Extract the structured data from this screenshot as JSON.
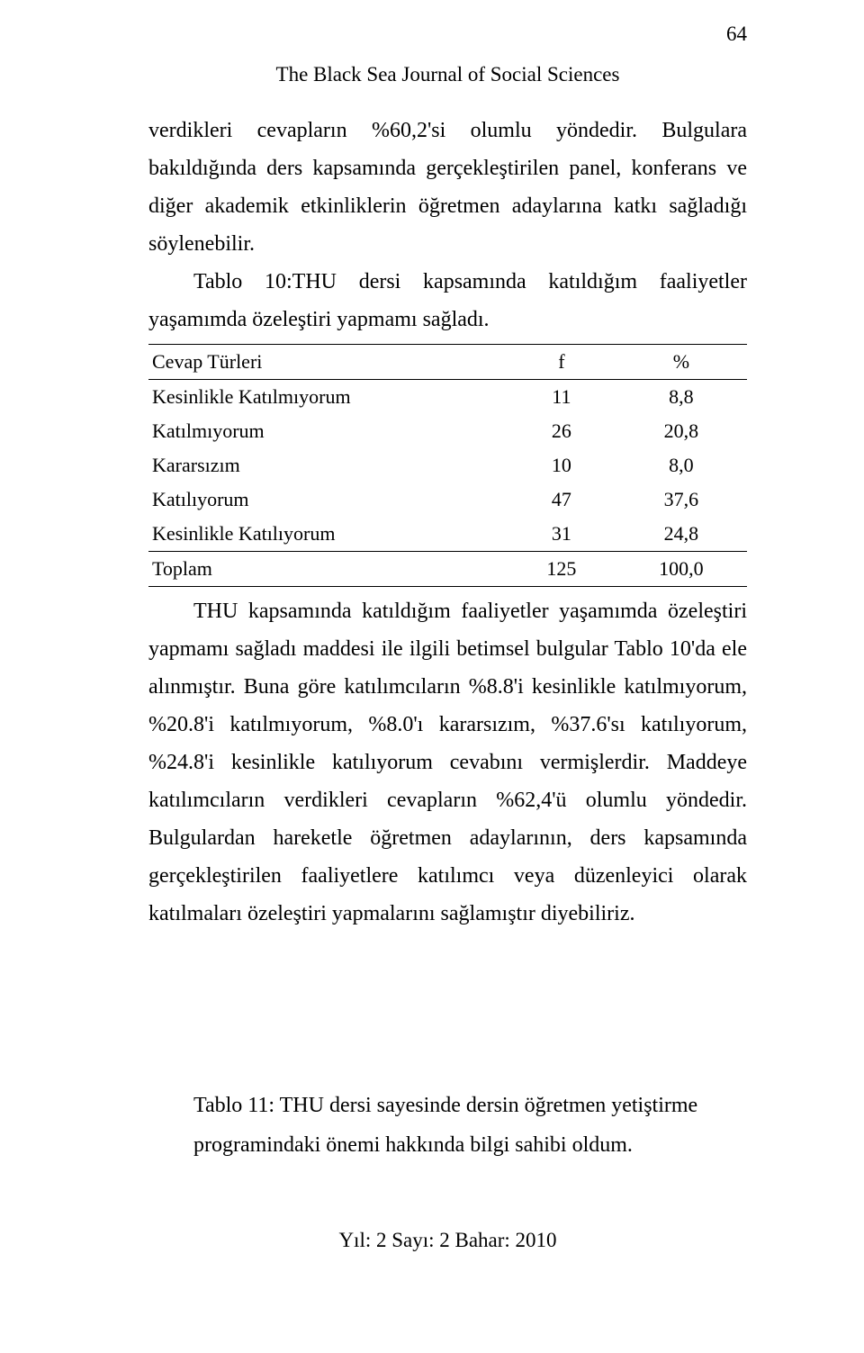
{
  "page_number": "64",
  "journal_title": "The Black Sea Journal of Social Sciences",
  "intro_paragraph": "verdikleri cevapların %60,2'si olumlu yöndedir. Bulgulara bakıldığında ders kapsamında gerçekleştirilen panel, konferans ve diğer akademik etkinliklerin öğretmen adaylarına katkı sağladığı söylenebilir.",
  "table_caption": "Tablo 10:THU dersi kapsamında katıldığım faaliyetler yaşamımda özeleştiri yapmamı sağladı.",
  "table": {
    "type": "table",
    "columns": [
      "Cevap Türleri",
      "f",
      "%"
    ],
    "rows": [
      [
        "Kesinlikle Katılmıyorum",
        "11",
        "8,8"
      ],
      [
        "Katılmıyorum",
        "26",
        "20,8"
      ],
      [
        "Kararsızım",
        "10",
        "8,0"
      ],
      [
        "Katılıyorum",
        "47",
        "37,6"
      ],
      [
        "Kesinlikle Katılıyorum",
        "31",
        "24,8"
      ]
    ],
    "total_row": [
      "Toplam",
      "125",
      "100,0"
    ],
    "border_color": "#000000",
    "background_color": "#ffffff",
    "header_fontsize": 22,
    "cell_fontsize": 22,
    "col_widths_pct": [
      60,
      18,
      22
    ],
    "col_align": [
      "left",
      "center",
      "center"
    ]
  },
  "after_table_paragraph": "THU kapsamında katıldığım faaliyetler yaşamımda özeleştiri yapmamı sağladı maddesi ile ilgili betimsel bulgular Tablo 10'da ele alınmıştır. Buna göre katılımcıların %8.8'i kesinlikle katılmıyorum, %20.8'i katılmıyorum, %8.0'ı kararsızım, %37.6'sı katılıyorum, %24.8'i kesinlikle katılıyorum cevabını vermişlerdir. Maddeye katılımcıların verdikleri cevapların %62,4'ü olumlu yöndedir. Bulgulardan hareketle öğretmen adaylarının, ders kapsamında gerçekleştirilen faaliyetlere katılımcı veya düzenleyici olarak katılmaları özeleştiri yapmalarını sağlamıştır diyebiliriz.",
  "bottom_caption_line1": "Tablo 11: THU dersi sayesinde dersin öğretmen yetiştirme",
  "bottom_caption_line2": "programindaki önemi hakkında bilgi sahibi oldum.",
  "footer": "Yıl: 2 Sayı: 2 Bahar: 2010"
}
